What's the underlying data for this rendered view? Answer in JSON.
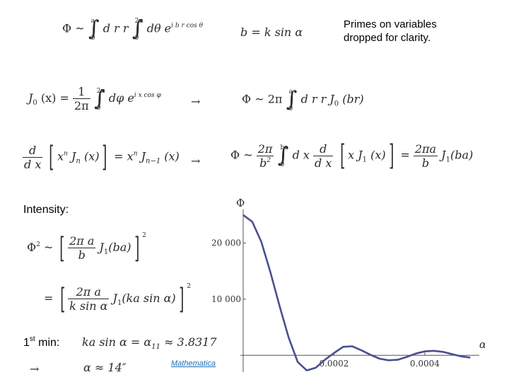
{
  "note": {
    "line1": "Primes on variables",
    "line2": "dropped for clarity."
  },
  "labels": {
    "intensity": "Intensity:",
    "first_min_base": "1",
    "first_min_sup": "st",
    "first_min_rest": " min:",
    "mathematica": "Mathematica"
  },
  "arrows": {
    "symbol": "→"
  },
  "equations": {
    "phi_integral": {
      "lhs": "Φ ~",
      "upper_r": "a",
      "lower_r": "0",
      "dr": "d r r",
      "upper_t": "2π",
      "lower_t": "0",
      "dt": "dθ e",
      "exp": "i b r cos θ"
    },
    "b_def": "b = k sin α",
    "bessel_def": {
      "lhs": "J",
      "lhs_sub": "0",
      "lhs_arg": "(x) =",
      "coef_num": "1",
      "coef_den": "2π",
      "upper": "2π",
      "lower": "0",
      "body": "dφ e",
      "exp": "i x cos φ"
    },
    "phi_bessel": {
      "lhs": "Φ ~ 2π",
      "upper": "a",
      "lower": "0",
      "body": "d r r J",
      "sub": "0",
      "arg": "(br)"
    },
    "recurrence": {
      "d_num": "d",
      "d_den": "d x",
      "x": "x",
      "n": "n",
      "J": "J",
      "arg": "(x)",
      "eq": "= x",
      "n_minus": "n−1"
    },
    "phi_result": {
      "lhs": "Φ ~",
      "coef_num": "2π",
      "coef_den": "b",
      "sq": "2",
      "upper": "ba",
      "lower": "0",
      "dx": "d x",
      "d_num": "d",
      "d_den": "d x",
      "xj": "x J",
      "one": "1",
      "arg": "(x)",
      "eq": "=",
      "r_num": "2πa",
      "r_den": "b",
      "r_J": "J",
      "r_arg": "(ba)"
    },
    "intensity_1": {
      "lhs": "Φ",
      "lhs_sup": "2",
      "tilde": "~",
      "num": "2π a",
      "den": "b",
      "J": "J",
      "one": "1",
      "arg": "(ba)",
      "sq": "2"
    },
    "intensity_2": {
      "eq": "=",
      "num": "2π a",
      "den": "k sin α",
      "J": "J",
      "one": "1",
      "arg": "(ka sin α)",
      "sq": "2"
    },
    "first_min": {
      "expr": "ka sin α = α",
      "sub": "11",
      "approx": "≈ 3.8317"
    },
    "angle": {
      "expr": "α ≈ 14″"
    }
  },
  "chart_data": {
    "type": "line",
    "title": "",
    "xlabel": "α",
    "ylabel": "Φ",
    "xlim": [
      0,
      0.00052
    ],
    "ylim": [
      -3000,
      26000
    ],
    "x_ticks": [
      "0.0002",
      "0.0004"
    ],
    "y_ticks": [
      "10 000",
      "20 000"
    ],
    "x_tick_values": [
      0.0002,
      0.0004
    ],
    "y_tick_values": [
      10000,
      20000
    ],
    "series": [
      {
        "color": "#4b4f8f",
        "x": [
          0,
          2e-05,
          4e-05,
          6e-05,
          8e-05,
          0.0001,
          0.00012,
          0.00014,
          0.00016,
          0.00018,
          0.0002,
          0.00022,
          0.00024,
          0.00026,
          0.00028,
          0.0003,
          0.00032,
          0.00034,
          0.00036,
          0.00038,
          0.0004,
          0.00042,
          0.00044,
          0.00046,
          0.00048,
          0.0005
        ],
        "y": [
          25000,
          23800,
          20200,
          14800,
          8800,
          3200,
          -1200,
          -2700,
          -2200,
          -800,
          400,
          1500,
          1600,
          900,
          100,
          -600,
          -900,
          -800,
          -300,
          300,
          700,
          800,
          600,
          200,
          -200,
          -400
        ]
      }
    ]
  }
}
